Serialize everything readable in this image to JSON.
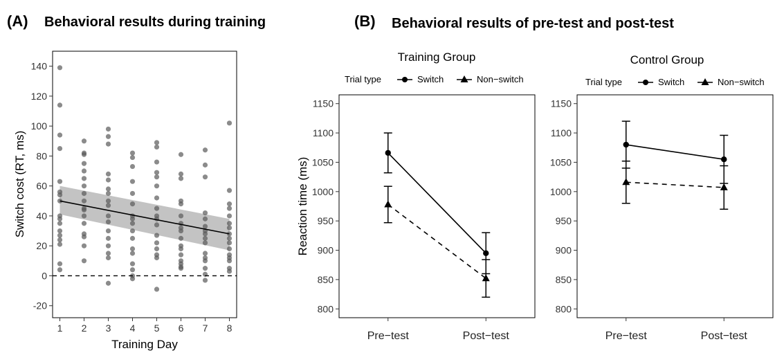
{
  "figure": {
    "panel_a_label": "(A)",
    "panel_a_title": "Behavioral results during training",
    "panel_b_label": "(B)",
    "panel_b_title": "Behavioral results of pre-test and post-test"
  },
  "chart_data": [
    {
      "id": "A",
      "type": "scatter",
      "title": "Behavioral results during training",
      "xlabel": "Training Day",
      "ylabel": "Switch cost (RT, ms)",
      "xlim": [
        0.7,
        8.3
      ],
      "ylim": [
        -28,
        150
      ],
      "xticks": [
        1,
        2,
        3,
        4,
        5,
        6,
        7,
        8
      ],
      "yticks": [
        -20,
        0,
        20,
        40,
        60,
        80,
        100,
        120,
        140
      ],
      "points": [
        {
          "day": 1,
          "values": [
            139,
            114,
            94,
            85,
            63,
            56,
            54,
            50,
            40,
            38,
            35,
            30,
            27,
            24,
            21,
            8,
            4
          ]
        },
        {
          "day": 2,
          "values": [
            90,
            82,
            81,
            75,
            70,
            65,
            60,
            55,
            50,
            45,
            44,
            40,
            35,
            28,
            26,
            20,
            10
          ]
        },
        {
          "day": 3,
          "values": [
            98,
            93,
            88,
            68,
            64,
            58,
            55,
            50,
            47,
            40,
            36,
            30,
            25,
            20,
            15,
            12,
            -5
          ]
        },
        {
          "day": 4,
          "values": [
            82,
            79,
            73,
            63,
            55,
            48,
            40,
            38,
            35,
            30,
            25,
            18,
            15,
            8,
            4,
            0,
            -2
          ]
        },
        {
          "day": 5,
          "values": [
            89,
            86,
            76,
            69,
            66,
            60,
            52,
            45,
            40,
            38,
            34,
            27,
            22,
            18,
            14,
            12,
            -9
          ]
        },
        {
          "day": 6,
          "values": [
            81,
            68,
            65,
            50,
            48,
            40,
            35,
            32,
            30,
            25,
            20,
            18,
            14,
            10,
            8,
            6,
            5
          ]
        },
        {
          "day": 7,
          "values": [
            84,
            74,
            66,
            42,
            38,
            33,
            30,
            28,
            25,
            22,
            15,
            12,
            10,
            5,
            1,
            -3
          ]
        },
        {
          "day": 8,
          "values": [
            102,
            57,
            48,
            45,
            40,
            35,
            32,
            28,
            25,
            22,
            18,
            14,
            12,
            10,
            5,
            3
          ]
        }
      ],
      "regression": {
        "x": [
          1,
          8
        ],
        "y": [
          50,
          28
        ],
        "ci_lower": [
          41,
          17
        ],
        "ci_upper": [
          60,
          38
        ]
      },
      "reference_line": {
        "y": 0,
        "style": "dashed"
      }
    },
    {
      "id": "B-training",
      "type": "line",
      "title": "Training Group",
      "ylabel": "Reaction time (ms)",
      "categories": [
        "Pre−test",
        "Post−test"
      ],
      "ylim": [
        785,
        1165
      ],
      "yticks": [
        800,
        850,
        900,
        950,
        1000,
        1050,
        1100,
        1150
      ],
      "legend": {
        "title": "Trial type",
        "placement": "top"
      },
      "series": [
        {
          "name": "Switch",
          "marker": "circle",
          "linestyle": "solid",
          "values": [
            1066,
            895
          ],
          "err": [
            34,
            35
          ]
        },
        {
          "name": "Non−switch",
          "marker": "triangle",
          "linestyle": "dashed",
          "values": [
            978,
            852
          ],
          "err": [
            31,
            32
          ]
        }
      ]
    },
    {
      "id": "B-control",
      "type": "line",
      "title": "Control Group",
      "ylabel": "",
      "categories": [
        "Pre−test",
        "Post−test"
      ],
      "ylim": [
        785,
        1165
      ],
      "yticks": [
        800,
        850,
        900,
        950,
        1000,
        1050,
        1100,
        1150
      ],
      "legend": {
        "title": "Trial type",
        "placement": "top"
      },
      "series": [
        {
          "name": "Switch",
          "marker": "circle",
          "linestyle": "solid",
          "values": [
            1080,
            1055
          ],
          "err": [
            40,
            41
          ]
        },
        {
          "name": "Non−switch",
          "marker": "triangle",
          "linestyle": "dashed",
          "values": [
            1016,
            1007
          ],
          "err": [
            36,
            37
          ]
        }
      ]
    }
  ],
  "colors": {
    "points": "#5a5a5a",
    "ci_band": "#bdbdbd",
    "line": "#000000"
  }
}
